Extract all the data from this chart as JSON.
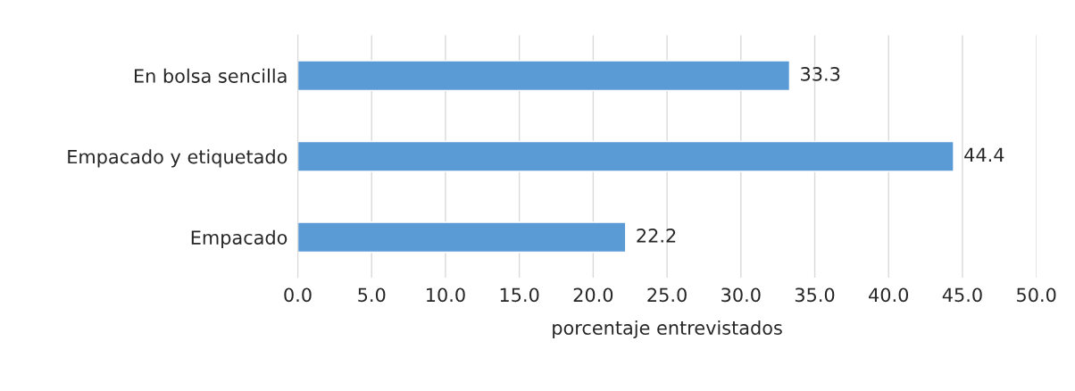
{
  "chart_data": {
    "type": "bar",
    "orientation": "horizontal",
    "xlabel": "porcentaje entrevistados",
    "categories": [
      "En bolsa sencilla",
      "Empacado y etiquetado",
      "Empacado"
    ],
    "values": [
      33.3,
      44.4,
      22.2
    ],
    "color": "#5b9bd5",
    "data_labels": true,
    "xlim": [
      0,
      50
    ],
    "xticks": [
      {
        "value": 0,
        "label": "0.0"
      },
      {
        "value": 5,
        "label": "5.0"
      },
      {
        "value": 10,
        "label": "10.0"
      },
      {
        "value": 15,
        "label": "15.0"
      },
      {
        "value": 20,
        "label": "20.0"
      },
      {
        "value": 25,
        "label": "25.0"
      },
      {
        "value": 30,
        "label": "30.0"
      },
      {
        "value": 35,
        "label": "35.0"
      },
      {
        "value": 40,
        "label": "40.0"
      },
      {
        "value": 45,
        "label": "45.0"
      },
      {
        "value": 50,
        "label": "50.0"
      }
    ],
    "grid": "x"
  }
}
